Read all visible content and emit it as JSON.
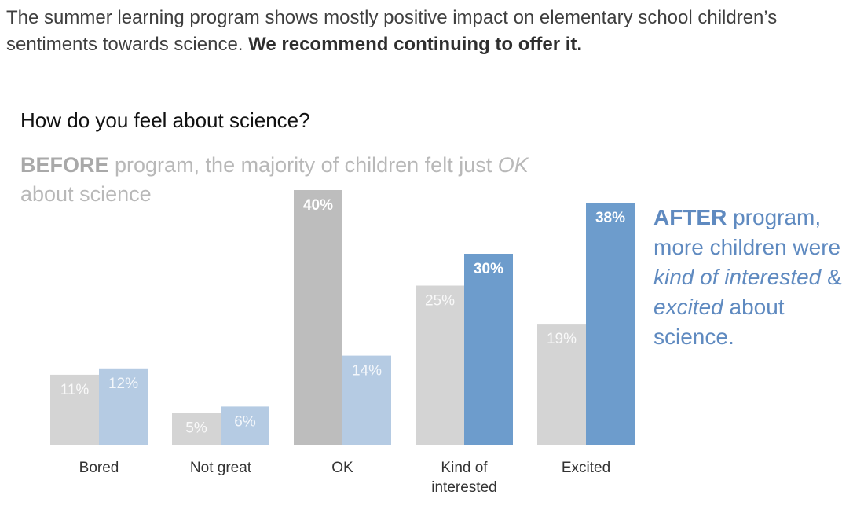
{
  "headline": {
    "part1": "The summer learning program shows mostly positive impact on elementary school children’s sentiments towards science.",
    "bold": "We recommend continuing to offer it."
  },
  "chart_data": {
    "type": "bar",
    "title": "How do you feel about science?",
    "categories": [
      "Bored",
      "Not great",
      "OK",
      "Kind of interested",
      "Excited"
    ],
    "series": [
      {
        "name": "BEFORE",
        "values": [
          11,
          5,
          40,
          25,
          19
        ],
        "labels": [
          "11%",
          "5%",
          "40%",
          "25%",
          "19%"
        ]
      },
      {
        "name": "AFTER",
        "values": [
          12,
          6,
          14,
          30,
          38
        ],
        "labels": [
          "12%",
          "6%",
          "14%",
          "30%",
          "38%"
        ]
      }
    ],
    "ylim": [
      0,
      40
    ],
    "grid": false,
    "colors": {
      "before_muted": "#d4d4d4",
      "before_highlight": "#bdbdbd",
      "after_muted": "#b5cbe3",
      "after_highlight": "#6d9ccc",
      "muted_label": "#ffffff",
      "highlight_label": "#ffffff"
    },
    "highlight": {
      "before": [
        "OK"
      ],
      "after": [
        "Kind of interested",
        "Excited"
      ]
    }
  },
  "annotations": {
    "before": {
      "bold": "BEFORE",
      "part1": " program, the majority of children felt just ",
      "italic": "OK",
      "part2": " about science"
    },
    "after": {
      "bold": "AFTER",
      "part1": " program, more children were ",
      "italic1": "kind of interested",
      "part2": " & ",
      "italic2": "excited",
      "part3": " about science."
    }
  }
}
